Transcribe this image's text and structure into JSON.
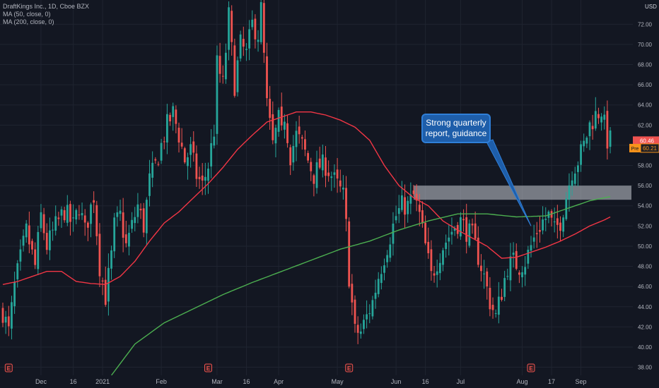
{
  "chart_data": {
    "type": "candlestick",
    "title": "DraftKings Inc., 1D, Cboe BZX",
    "indicators": [
      {
        "name": "MA (50, close, 0)",
        "color": "#f23645"
      },
      {
        "name": "MA (200, close, 0)",
        "color": "#4caf50"
      }
    ],
    "currency": "USD",
    "ylim": [
      37.2,
      74.4
    ],
    "y_ticks": [
      "38.00",
      "40.00",
      "42.00",
      "44.00",
      "46.00",
      "48.00",
      "50.00",
      "52.00",
      "54.00",
      "56.00",
      "58.00",
      "60.00",
      "62.00",
      "64.00",
      "66.00",
      "68.00",
      "70.00",
      "72.00"
    ],
    "x_ticks": [
      {
        "label": "Dec",
        "i": 13
      },
      {
        "label": "16",
        "i": 24
      },
      {
        "label": "2021",
        "i": 34
      },
      {
        "label": "Feb",
        "i": 54
      },
      {
        "label": "Mar",
        "i": 73
      },
      {
        "label": "16",
        "i": 83
      },
      {
        "label": "Apr",
        "i": 94
      },
      {
        "label": "May",
        "i": 114
      },
      {
        "label": "Jun",
        "i": 134
      },
      {
        "label": "16",
        "i": 144
      },
      {
        "label": "Jul",
        "i": 156
      },
      {
        "label": "Aug",
        "i": 177
      },
      {
        "label": "17",
        "i": 187
      },
      {
        "label": "Sep",
        "i": 197
      }
    ],
    "earnings_markers": [
      2,
      70,
      118,
      180
    ],
    "earnings_label": "E",
    "current_price": "60.46",
    "premarket_label": "Pre",
    "premarket_price": "60.21",
    "resistance_zone": [
      54.6,
      56.0
    ],
    "resistance_start_index": 140,
    "annotation": {
      "text_line1": "Strong quarterly",
      "text_line2": "report, guidance",
      "target_index": 180,
      "target_price": 52.0
    },
    "colors": {
      "up": "#26a69a",
      "down": "#ef5350",
      "background": "#131722",
      "grid": "#1f2430"
    },
    "close_keypoints": [
      [
        0,
        43.5
      ],
      [
        2,
        41.5
      ],
      [
        4,
        46
      ],
      [
        8,
        51.5
      ],
      [
        11,
        48
      ],
      [
        13,
        53
      ],
      [
        15,
        50
      ],
      [
        18,
        52
      ],
      [
        21,
        53.5
      ],
      [
        24,
        52
      ],
      [
        26,
        54
      ],
      [
        28,
        51.5
      ],
      [
        31,
        55
      ],
      [
        33,
        48
      ],
      [
        35,
        45
      ],
      [
        37,
        49
      ],
      [
        38,
        52
      ],
      [
        40,
        53
      ],
      [
        42,
        50
      ],
      [
        44,
        52
      ],
      [
        46,
        54
      ],
      [
        48,
        52
      ],
      [
        50,
        56.5
      ],
      [
        52,
        58
      ],
      [
        54,
        60
      ],
      [
        56,
        62
      ],
      [
        58,
        63.2
      ],
      [
        60,
        61
      ],
      [
        62,
        58.5
      ],
      [
        64,
        59.5
      ],
      [
        66,
        57
      ],
      [
        68,
        56
      ],
      [
        70,
        58
      ],
      [
        72,
        61.5
      ],
      [
        73,
        68
      ],
      [
        75,
        66
      ],
      [
        77,
        72.8
      ],
      [
        79,
        66
      ],
      [
        81,
        70
      ],
      [
        83,
        69
      ],
      [
        85,
        72
      ],
      [
        87,
        71
      ],
      [
        88,
        73.5
      ],
      [
        90,
        64
      ],
      [
        92,
        60
      ],
      [
        94,
        62.5
      ],
      [
        95,
        61
      ],
      [
        96,
        63
      ],
      [
        98,
        59
      ],
      [
        100,
        61
      ],
      [
        102,
        60
      ],
      [
        104,
        58.5
      ],
      [
        106,
        57
      ],
      [
        108,
        58
      ],
      [
        110,
        58
      ],
      [
        112,
        57
      ],
      [
        114,
        56
      ],
      [
        116,
        55
      ],
      [
        117,
        52
      ],
      [
        118,
        47
      ],
      [
        120,
        41.5
      ],
      [
        122,
        41.5
      ],
      [
        124,
        43
      ],
      [
        126,
        44.5
      ],
      [
        128,
        47
      ],
      [
        130,
        49
      ],
      [
        132,
        51
      ],
      [
        134,
        53
      ],
      [
        136,
        54
      ],
      [
        138,
        54
      ],
      [
        140,
        55
      ],
      [
        142,
        53
      ],
      [
        144,
        50
      ],
      [
        146,
        47
      ],
      [
        148,
        48.5
      ],
      [
        150,
        50
      ],
      [
        152,
        51
      ],
      [
        154,
        52
      ],
      [
        156,
        52.5
      ],
      [
        158,
        51.5
      ],
      [
        160,
        51
      ],
      [
        162,
        49
      ],
      [
        164,
        47
      ],
      [
        166,
        44.5
      ],
      [
        168,
        43
      ],
      [
        170,
        45.5
      ],
      [
        172,
        48
      ],
      [
        174,
        48.5
      ],
      [
        176,
        48
      ],
      [
        178,
        48.5
      ],
      [
        180,
        50
      ],
      [
        182,
        51.5
      ],
      [
        184,
        52.5
      ],
      [
        186,
        53
      ],
      [
        188,
        51.5
      ],
      [
        190,
        52.5
      ],
      [
        192,
        55
      ],
      [
        194,
        57.5
      ],
      [
        196,
        58.5
      ],
      [
        198,
        60
      ],
      [
        200,
        62
      ],
      [
        202,
        63
      ],
      [
        204,
        63.5
      ],
      [
        206,
        60.5
      ]
    ],
    "ma50_keypoints": [
      [
        0,
        46.2
      ],
      [
        5,
        46.5
      ],
      [
        10,
        47
      ],
      [
        15,
        47.5
      ],
      [
        20,
        47.5
      ],
      [
        25,
        46.5
      ],
      [
        30,
        46.3
      ],
      [
        35,
        46.2
      ],
      [
        40,
        47
      ],
      [
        45,
        48.5
      ],
      [
        50,
        50.5
      ],
      [
        55,
        52.3
      ],
      [
        60,
        53.4
      ],
      [
        65,
        54.8
      ],
      [
        70,
        56.2
      ],
      [
        75,
        57.8
      ],
      [
        80,
        59.6
      ],
      [
        85,
        61
      ],
      [
        90,
        62.3
      ],
      [
        95,
        62.8
      ],
      [
        100,
        63.3
      ],
      [
        105,
        63.3
      ],
      [
        110,
        63
      ],
      [
        115,
        62.5
      ],
      [
        120,
        61.8
      ],
      [
        125,
        60.5
      ],
      [
        130,
        58
      ],
      [
        135,
        56
      ],
      [
        140,
        54.8
      ],
      [
        145,
        54
      ],
      [
        150,
        52.5
      ],
      [
        155,
        51.6
      ],
      [
        160,
        50.8
      ],
      [
        165,
        50
      ],
      [
        170,
        48.8
      ],
      [
        175,
        48.9
      ],
      [
        180,
        49.4
      ],
      [
        185,
        49.9
      ],
      [
        190,
        50.5
      ],
      [
        195,
        51.2
      ],
      [
        200,
        52
      ],
      [
        205,
        52.6
      ],
      [
        207,
        52.9
      ]
    ],
    "ma200_keypoints": [
      [
        37,
        37.2
      ],
      [
        45,
        40.3
      ],
      [
        55,
        42.4
      ],
      [
        65,
        43.8
      ],
      [
        75,
        45.2
      ],
      [
        85,
        46.4
      ],
      [
        95,
        47.5
      ],
      [
        105,
        48.6
      ],
      [
        115,
        49.7
      ],
      [
        125,
        50.5
      ],
      [
        135,
        51.6
      ],
      [
        145,
        52.5
      ],
      [
        155,
        53.2
      ],
      [
        165,
        53.2
      ],
      [
        175,
        52.9
      ],
      [
        185,
        53
      ],
      [
        190,
        53.5
      ],
      [
        195,
        54
      ],
      [
        200,
        54.5
      ],
      [
        205,
        54.8
      ],
      [
        207,
        54.9
      ]
    ]
  }
}
